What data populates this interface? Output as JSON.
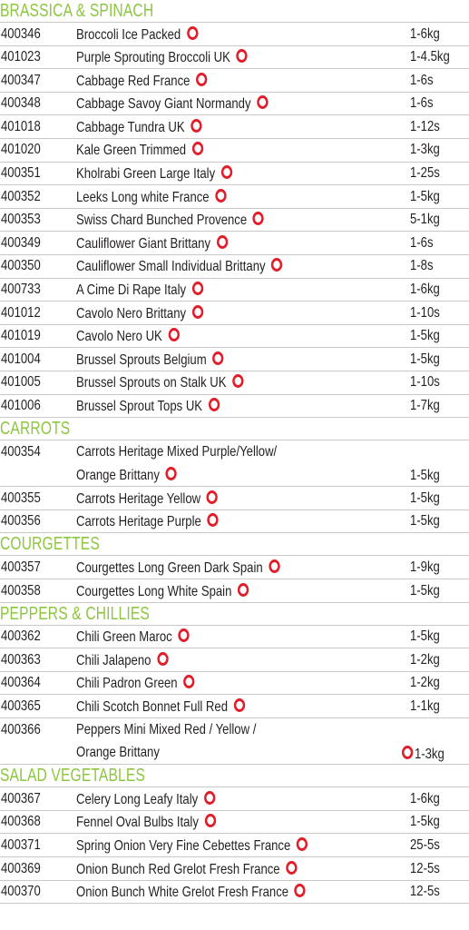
{
  "colors": {
    "heading": "#8dc63f",
    "marker": "#e11d2a",
    "rule": "#c9c9c9",
    "text": "#231f20"
  },
  "marker_icon": "red-circle-icon",
  "sections": [
    {
      "title": "BRASSICA & SPINACH",
      "items": [
        {
          "code": "400346",
          "desc": "Broccoli Ice Packed",
          "size": "1-6kg"
        },
        {
          "code": "401023",
          "desc": "Purple Sprouting Broccoli UK",
          "size": "1-4.5kg"
        },
        {
          "code": "400347",
          "desc": "Cabbage Red France",
          "size": "1-6s"
        },
        {
          "code": "400348",
          "desc": "Cabbage Savoy Giant Normandy",
          "size": "1-6s"
        },
        {
          "code": "401018",
          "desc": "Cabbage Tundra UK",
          "size": "1-12s"
        },
        {
          "code": "401020",
          "desc": "Kale Green Trimmed",
          "size": "1-3kg"
        },
        {
          "code": "400351",
          "desc": "Kholrabi Green Large Italy",
          "size": "1-25s"
        },
        {
          "code": "400352",
          "desc": "Leeks Long white France",
          "size": "1-5kg"
        },
        {
          "code": "400353",
          "desc": "Swiss Chard Bunched Provence",
          "size": "5-1kg"
        },
        {
          "code": "400349",
          "desc": "Cauliflower Giant Brittany",
          "size": "1-6s"
        },
        {
          "code": "400350",
          "desc": "Cauliflower Small Individual Brittany",
          "size": "1-8s"
        },
        {
          "code": "400733",
          "desc": "A Cime Di Rape Italy",
          "size": "1-6kg"
        },
        {
          "code": "401012",
          "desc": "Cavolo Nero Brittany",
          "size": "1-10s"
        },
        {
          "code": "401019",
          "desc": "Cavolo Nero UK",
          "size": "1-5kg"
        },
        {
          "code": "401004",
          "desc": "Brussel Sprouts Belgium",
          "size": "1-5kg"
        },
        {
          "code": "401005",
          "desc": "Brussel Sprouts on Stalk UK",
          "size": "1-10s"
        },
        {
          "code": "401006",
          "desc": "Brussel Sprout Tops UK",
          "size": "1-7kg"
        }
      ]
    },
    {
      "title": "CARROTS",
      "items": [
        {
          "code": "400354",
          "line1": "Carrots Heritage Mixed Purple/Yellow/",
          "line2": "Orange Brittany",
          "size": "1-5kg"
        },
        {
          "code": "400355",
          "desc": "Carrots Heritage Yellow",
          "size": "1-5kg"
        },
        {
          "code": "400356",
          "desc": "Carrots Heritage Purple",
          "size": "1-5kg"
        }
      ]
    },
    {
      "title": "COURGETTES",
      "items": [
        {
          "code": "400357",
          "desc": "Courgettes Long Green Dark Spain",
          "size": "1-9kg"
        },
        {
          "code": "400358",
          "desc": "Courgettes Long White Spain",
          "size": "1-5kg"
        }
      ]
    },
    {
      "title": "PEPPERS & CHILLIES",
      "items": [
        {
          "code": "400362",
          "desc": "Chili Green Maroc",
          "size": "1-5kg"
        },
        {
          "code": "400363",
          "desc": "Chili Jalapeno",
          "size": "1-2kg"
        },
        {
          "code": "400364",
          "desc": "Chili Padron Green",
          "size": "1-2kg"
        },
        {
          "code": "400365",
          "desc": "Chili Scotch Bonnet Full Red",
          "size": "1-1kg"
        },
        {
          "code": "400366",
          "line1": "Peppers Mini Mixed Red / Yellow /",
          "line2": "Orange Brittany",
          "size": "1-3kg",
          "dot_before_size": true
        }
      ]
    },
    {
      "title": "SALAD VEGETABLES",
      "items": [
        {
          "code": "400367",
          "desc": "Celery Long Leafy Italy",
          "size": "1-6kg"
        },
        {
          "code": "400368",
          "desc": "Fennel Oval Bulbs Italy",
          "size": "1-5kg"
        },
        {
          "code": "400371",
          "desc": "Spring Onion Very Fine Cebettes France",
          "size": "25-5s"
        },
        {
          "code": "400369",
          "desc": "Onion Bunch Red Grelot Fresh France",
          "size": "12-5s"
        },
        {
          "code": "400370",
          "desc": "Onion Bunch White Grelot Fresh France",
          "size": "12-5s"
        }
      ]
    }
  ]
}
